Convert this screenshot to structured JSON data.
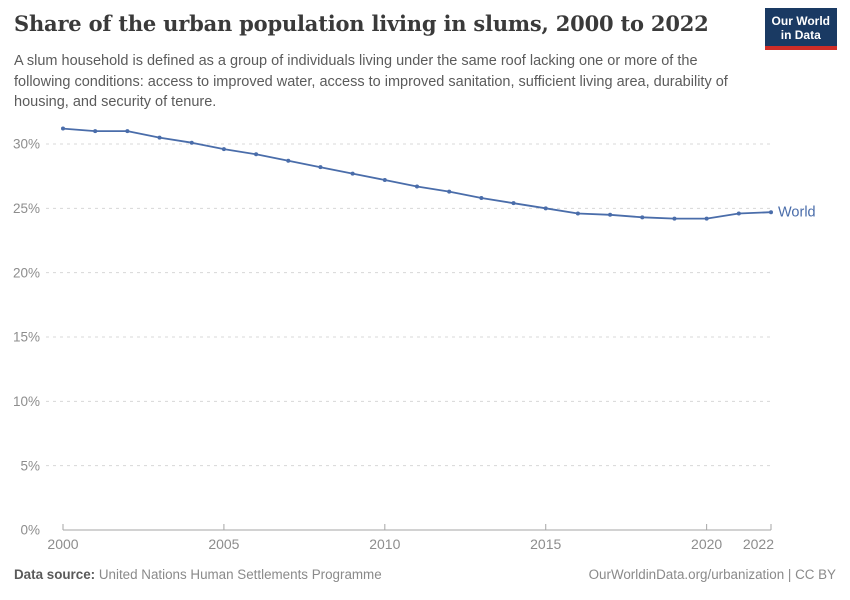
{
  "header": {
    "title": "Share of the urban population living in slums, 2000 to 2022",
    "subtitle": "A slum household is defined as a group of individuals living under the same roof lacking one or more of the following conditions: access to improved water, access to improved sanitation, sufficient living area, durability of housing, and security of tenure.",
    "logo": {
      "line1": "Our World",
      "line2": "in Data",
      "bg_color": "#1a3a63",
      "stripe_color": "#cf2d27"
    }
  },
  "chart_data": {
    "type": "line",
    "title": "Share of the urban population living in slums, 2000 to 2022",
    "x": [
      2000,
      2001,
      2002,
      2003,
      2004,
      2005,
      2006,
      2007,
      2008,
      2009,
      2010,
      2011,
      2012,
      2013,
      2014,
      2015,
      2016,
      2017,
      2018,
      2019,
      2020,
      2021,
      2022
    ],
    "series": [
      {
        "name": "World",
        "color": "#4a6daa",
        "values": [
          31.2,
          31.0,
          31.0,
          30.5,
          30.1,
          29.6,
          29.2,
          28.7,
          28.2,
          27.7,
          27.2,
          26.7,
          26.3,
          25.8,
          25.4,
          25.0,
          24.6,
          24.5,
          24.3,
          24.2,
          24.2,
          24.6,
          24.7
        ]
      }
    ],
    "xlabel": "",
    "ylabel": "",
    "x_ticks": [
      2000,
      2005,
      2010,
      2015,
      2020,
      2022
    ],
    "y_ticks": [
      0,
      5,
      10,
      15,
      20,
      25,
      30
    ],
    "y_tick_suffix": "%",
    "ylim": [
      0,
      32
    ],
    "xlim": [
      2000,
      2022
    ],
    "grid": "horizontal-dashed",
    "legend_position": "end-of-line-label",
    "grid_color": "#d8d8d8",
    "axis_color": "#a5a5a5",
    "tick_label_color": "#8d8d8d"
  },
  "footer": {
    "source_label": "Data source:",
    "source_value": " United Nations Human Settlements Programme",
    "link": "OurWorldinData.org/urbanization | CC BY"
  }
}
